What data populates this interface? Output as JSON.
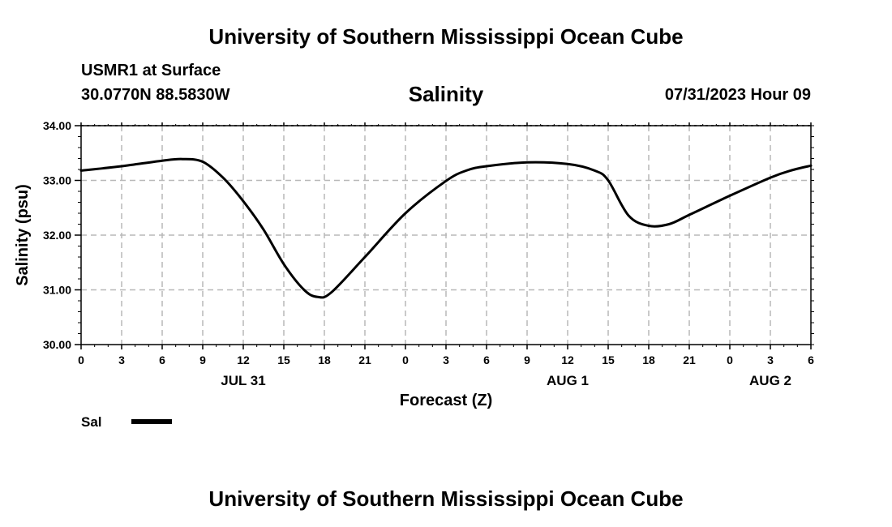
{
  "page": {
    "top_title": "University of Southern Mississippi Ocean Cube",
    "bottom_title": "University of Southern Mississippi Ocean Cube",
    "station": "USMR1 at Surface",
    "coords": "30.0770N  88.5830W",
    "datetime": "07/31/2023 Hour 09"
  },
  "chart_data": {
    "type": "line",
    "title": "Salinity",
    "xlabel": "Forecast (Z)",
    "ylabel": "Salinity (psu)",
    "ylim": [
      30.0,
      34.0
    ],
    "yticks": [
      "30.00",
      "31.00",
      "32.00",
      "33.00",
      "34.00"
    ],
    "xlim": [
      0,
      54
    ],
    "xtick_labels": [
      "0",
      "3",
      "6",
      "9",
      "12",
      "15",
      "18",
      "21",
      "0",
      "3",
      "6",
      "9",
      "12",
      "15",
      "18",
      "21",
      "0",
      "3",
      "6"
    ],
    "date_labels": [
      {
        "label": "JUL 31",
        "at_hour": 12
      },
      {
        "label": "AUG 1",
        "at_hour": 36
      },
      {
        "label": "AUG 2",
        "at_hour": 51
      }
    ],
    "grid": true,
    "legend": {
      "placement": "bottom-left"
    },
    "series": [
      {
        "name": "Sal",
        "color": "#000000",
        "x": [
          0,
          3,
          6,
          7.5,
          9,
          10.5,
          12,
          13.5,
          15,
          16.5,
          17.5,
          18.5,
          21,
          24,
          27,
          28.5,
          30,
          33,
          36,
          38,
          39,
          40.5,
          42,
          43.5,
          45,
          48,
          51,
          52.5,
          54
        ],
        "values": [
          33.18,
          33.26,
          33.36,
          33.39,
          33.34,
          33.05,
          32.62,
          32.1,
          31.47,
          31.0,
          30.87,
          30.95,
          31.6,
          32.4,
          32.99,
          33.18,
          33.26,
          33.33,
          33.3,
          33.18,
          33.0,
          32.36,
          32.17,
          32.2,
          32.37,
          32.72,
          33.05,
          33.18,
          33.27
        ]
      }
    ]
  }
}
